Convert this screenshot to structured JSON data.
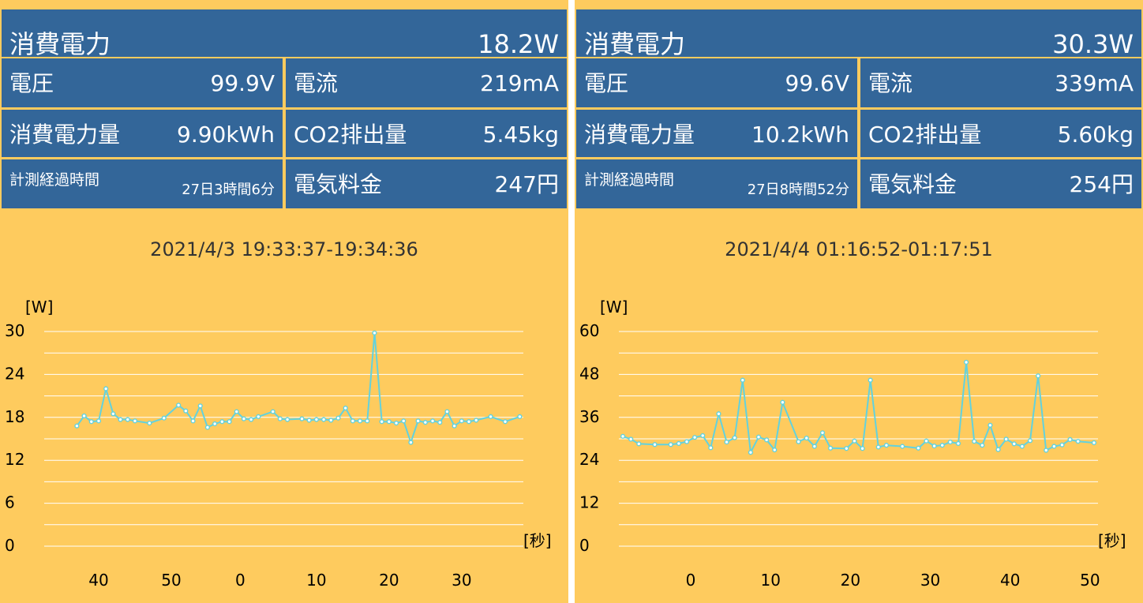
{
  "colors": {
    "background": "#fecb5e",
    "tile": "#336699",
    "tile_text": "#ffffff",
    "series": "#62d2de",
    "grid": "#ffffff"
  },
  "panels": [
    {
      "power_label": "消費電力",
      "power_value": "18.2W",
      "voltage_label": "電圧",
      "voltage_value": "99.9V",
      "current_label": "電流",
      "current_value": "219mA",
      "energy_label": "消費電力量",
      "energy_value": "9.90kWh",
      "co2_label": "CO2排出量",
      "co2_value": "5.45kg",
      "elapsed_label": "計測経過時間",
      "elapsed_value": "27日3時間6分",
      "cost_label": "電気料金",
      "cost_value": "247円",
      "timestamp": "2021/4/3 19:33:37-19:34:36",
      "chart_data": {
        "type": "line",
        "ylabel": "[W]",
        "xlabel": "[秒]",
        "ylim": [
          0,
          30
        ],
        "yticks": [
          0,
          6,
          12,
          18,
          24,
          30
        ],
        "xticks": [
          {
            "label": "40",
            "x": 40
          },
          {
            "label": "50",
            "x": 50
          },
          {
            "label": "0",
            "x": 59.5
          },
          {
            "label": "10",
            "x": 70
          },
          {
            "label": "20",
            "x": 80
          },
          {
            "label": "30",
            "x": 90
          }
        ],
        "xlim": [
          32.5,
          98.5
        ],
        "grid": true,
        "series": [
          {
            "x": [
              37,
              38,
              39,
              40,
              41,
              42,
              43,
              44,
              45,
              47,
              49,
              51,
              52,
              53,
              54,
              55,
              56,
              57,
              58,
              59,
              60,
              61,
              62,
              64,
              65,
              66,
              68,
              69,
              70,
              71,
              72,
              73,
              74,
              75,
              76,
              77,
              78,
              79,
              80,
              81,
              82,
              83,
              84,
              85,
              86,
              87,
              88,
              89,
              90,
              91,
              92,
              94,
              96,
              98
            ],
            "y": [
              16.8,
              18.2,
              17.4,
              17.5,
              22.0,
              18.5,
              17.7,
              17.7,
              17.5,
              17.2,
              17.9,
              19.7,
              18.9,
              17.5,
              19.6,
              16.6,
              17.1,
              17.4,
              17.4,
              18.8,
              17.8,
              17.7,
              18.1,
              18.8,
              17.8,
              17.7,
              17.8,
              17.6,
              17.7,
              17.7,
              17.6,
              17.9,
              19.3,
              17.5,
              17.5,
              17.5,
              29.8,
              17.4,
              17.4,
              17.2,
              17.5,
              14.5,
              17.5,
              17.3,
              17.5,
              17.3,
              18.8,
              16.8,
              17.5,
              17.4,
              17.6,
              18.1,
              17.4,
              18.1
            ]
          }
        ]
      }
    },
    {
      "power_label": "消費電力",
      "power_value": "30.3W",
      "voltage_label": "電圧",
      "voltage_value": "99.6V",
      "current_label": "電流",
      "current_value": "339mA",
      "energy_label": "消費電力量",
      "energy_value": "10.2kWh",
      "co2_label": "CO2排出量",
      "co2_value": "5.60kg",
      "elapsed_label": "計測経過時間",
      "elapsed_value": "27日8時間52分",
      "cost_label": "電気料金",
      "cost_value": "254円",
      "timestamp": "2021/4/4 01:16:52-01:17:51",
      "chart_data": {
        "type": "line",
        "ylabel": "[W]",
        "xlabel": "[秒]",
        "ylim": [
          0,
          60
        ],
        "yticks": [
          0,
          12,
          24,
          36,
          48,
          60
        ],
        "xticks": [
          {
            "label": "0",
            "x": 0
          },
          {
            "label": "10",
            "x": 10
          },
          {
            "label": "20",
            "x": 20
          },
          {
            "label": "30",
            "x": 30
          },
          {
            "label": "40",
            "x": 40
          },
          {
            "label": "50",
            "x": 50
          }
        ],
        "xlim": [
          -9,
          51
        ],
        "grid": true,
        "series": [
          {
            "x": [
              -8.5,
              -7.5,
              -6.5,
              -4.5,
              -2.5,
              -1.5,
              -0.5,
              0.5,
              1.5,
              2.5,
              3.5,
              4.5,
              5.5,
              6.5,
              7.5,
              8.5,
              9.5,
              10.5,
              11.5,
              13.5,
              14.5,
              15.5,
              16.5,
              17.5,
              19.5,
              20.5,
              21.5,
              22.5,
              23.5,
              24.5,
              26.5,
              28.5,
              29.5,
              30.5,
              31.5,
              32.5,
              33.5,
              34.5,
              35.5,
              36.5,
              37.5,
              38.5,
              39.5,
              40.5,
              41.5,
              42.5,
              43.5,
              44.5,
              45.5,
              46.5,
              47.5,
              48.5,
              50.5
            ],
            "y": [
              30.7,
              29.9,
              28.6,
              28.4,
              28.4,
              28.7,
              29.2,
              30.4,
              30.9,
              27.5,
              37.0,
              29.1,
              30.3,
              46.4,
              26.2,
              30.5,
              29.7,
              26.9,
              40.2,
              29.2,
              30.2,
              27.9,
              31.7,
              27.4,
              27.3,
              29.4,
              27.3,
              46.4,
              27.7,
              28.2,
              27.9,
              27.4,
              29.4,
              28.0,
              28.2,
              29.1,
              28.7,
              51.4,
              29.3,
              28.2,
              33.8,
              27.0,
              29.9,
              28.6,
              27.9,
              29.5,
              47.6,
              26.8,
              27.9,
              28.3,
              29.8,
              29.3,
              28.9
            ]
          }
        ]
      }
    }
  ]
}
